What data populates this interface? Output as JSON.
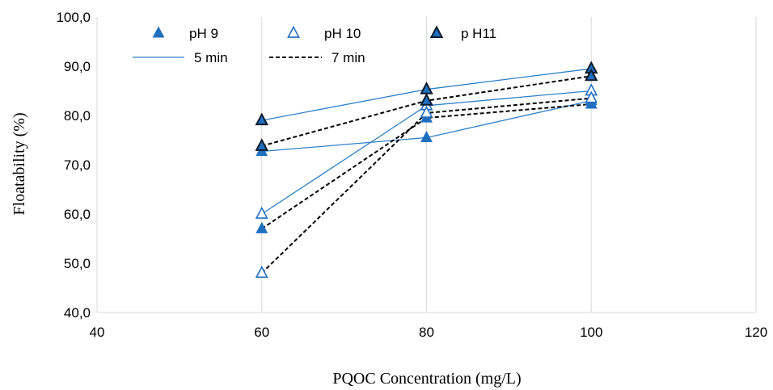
{
  "chart_data": {
    "type": "line",
    "xlabel": "PQOC Concentration (mg/L)",
    "ylabel": "Floatability (%)",
    "xlim": [
      40,
      120
    ],
    "ylim": [
      40,
      100
    ],
    "x_ticks": [
      40,
      60,
      80,
      100,
      120
    ],
    "y_ticks": [
      "40,0",
      "50,0",
      "60,0",
      "70,0",
      "80,0",
      "90,0",
      "100,0"
    ],
    "grid": "vertical",
    "legend_placement": "top-left",
    "legend": {
      "markers": [
        {
          "label": "pH 9",
          "marker": "filled-triangle",
          "color": "#1f6fc1"
        },
        {
          "label": "pH 10",
          "marker": "open-triangle",
          "color": "#1f6fc1"
        },
        {
          "label": "p H11",
          "marker": "dark-edged-triangle",
          "color": "#1f6fc1"
        }
      ],
      "lines": [
        {
          "label": "5 min",
          "style": "solid",
          "color": "#2e80c9"
        },
        {
          "label": "7 min",
          "style": "dashed",
          "color": "#000000"
        }
      ]
    },
    "series": [
      {
        "ph": "pH 9",
        "time": "5 min",
        "x": [
          60,
          80,
          100
        ],
        "y": [
          72.7,
          75.5,
          83.0
        ],
        "marker": "filled-triangle",
        "line": "solid"
      },
      {
        "ph": "pH 9",
        "time": "7 min",
        "x": [
          60,
          80,
          100
        ],
        "y": [
          57.0,
          79.5,
          82.3
        ],
        "marker": "filled-triangle",
        "line": "dashed"
      },
      {
        "ph": "pH 10",
        "time": "5 min",
        "x": [
          60,
          80,
          100
        ],
        "y": [
          60.0,
          82.0,
          85.0
        ],
        "marker": "open-triangle",
        "line": "solid"
      },
      {
        "ph": "pH 10",
        "time": "7 min",
        "x": [
          60,
          80,
          100
        ],
        "y": [
          48.0,
          80.5,
          83.5
        ],
        "marker": "open-triangle",
        "line": "dashed"
      },
      {
        "ph": "p H11",
        "time": "5 min",
        "x": [
          60,
          80,
          100
        ],
        "y": [
          79.0,
          85.3,
          89.5
        ],
        "marker": "dark-edged-triangle",
        "line": "solid"
      },
      {
        "ph": "p H11",
        "time": "7 min",
        "x": [
          60,
          80,
          100
        ],
        "y": [
          73.8,
          83.0,
          88.0
        ],
        "marker": "dark-edged-triangle",
        "line": "dashed"
      }
    ]
  }
}
